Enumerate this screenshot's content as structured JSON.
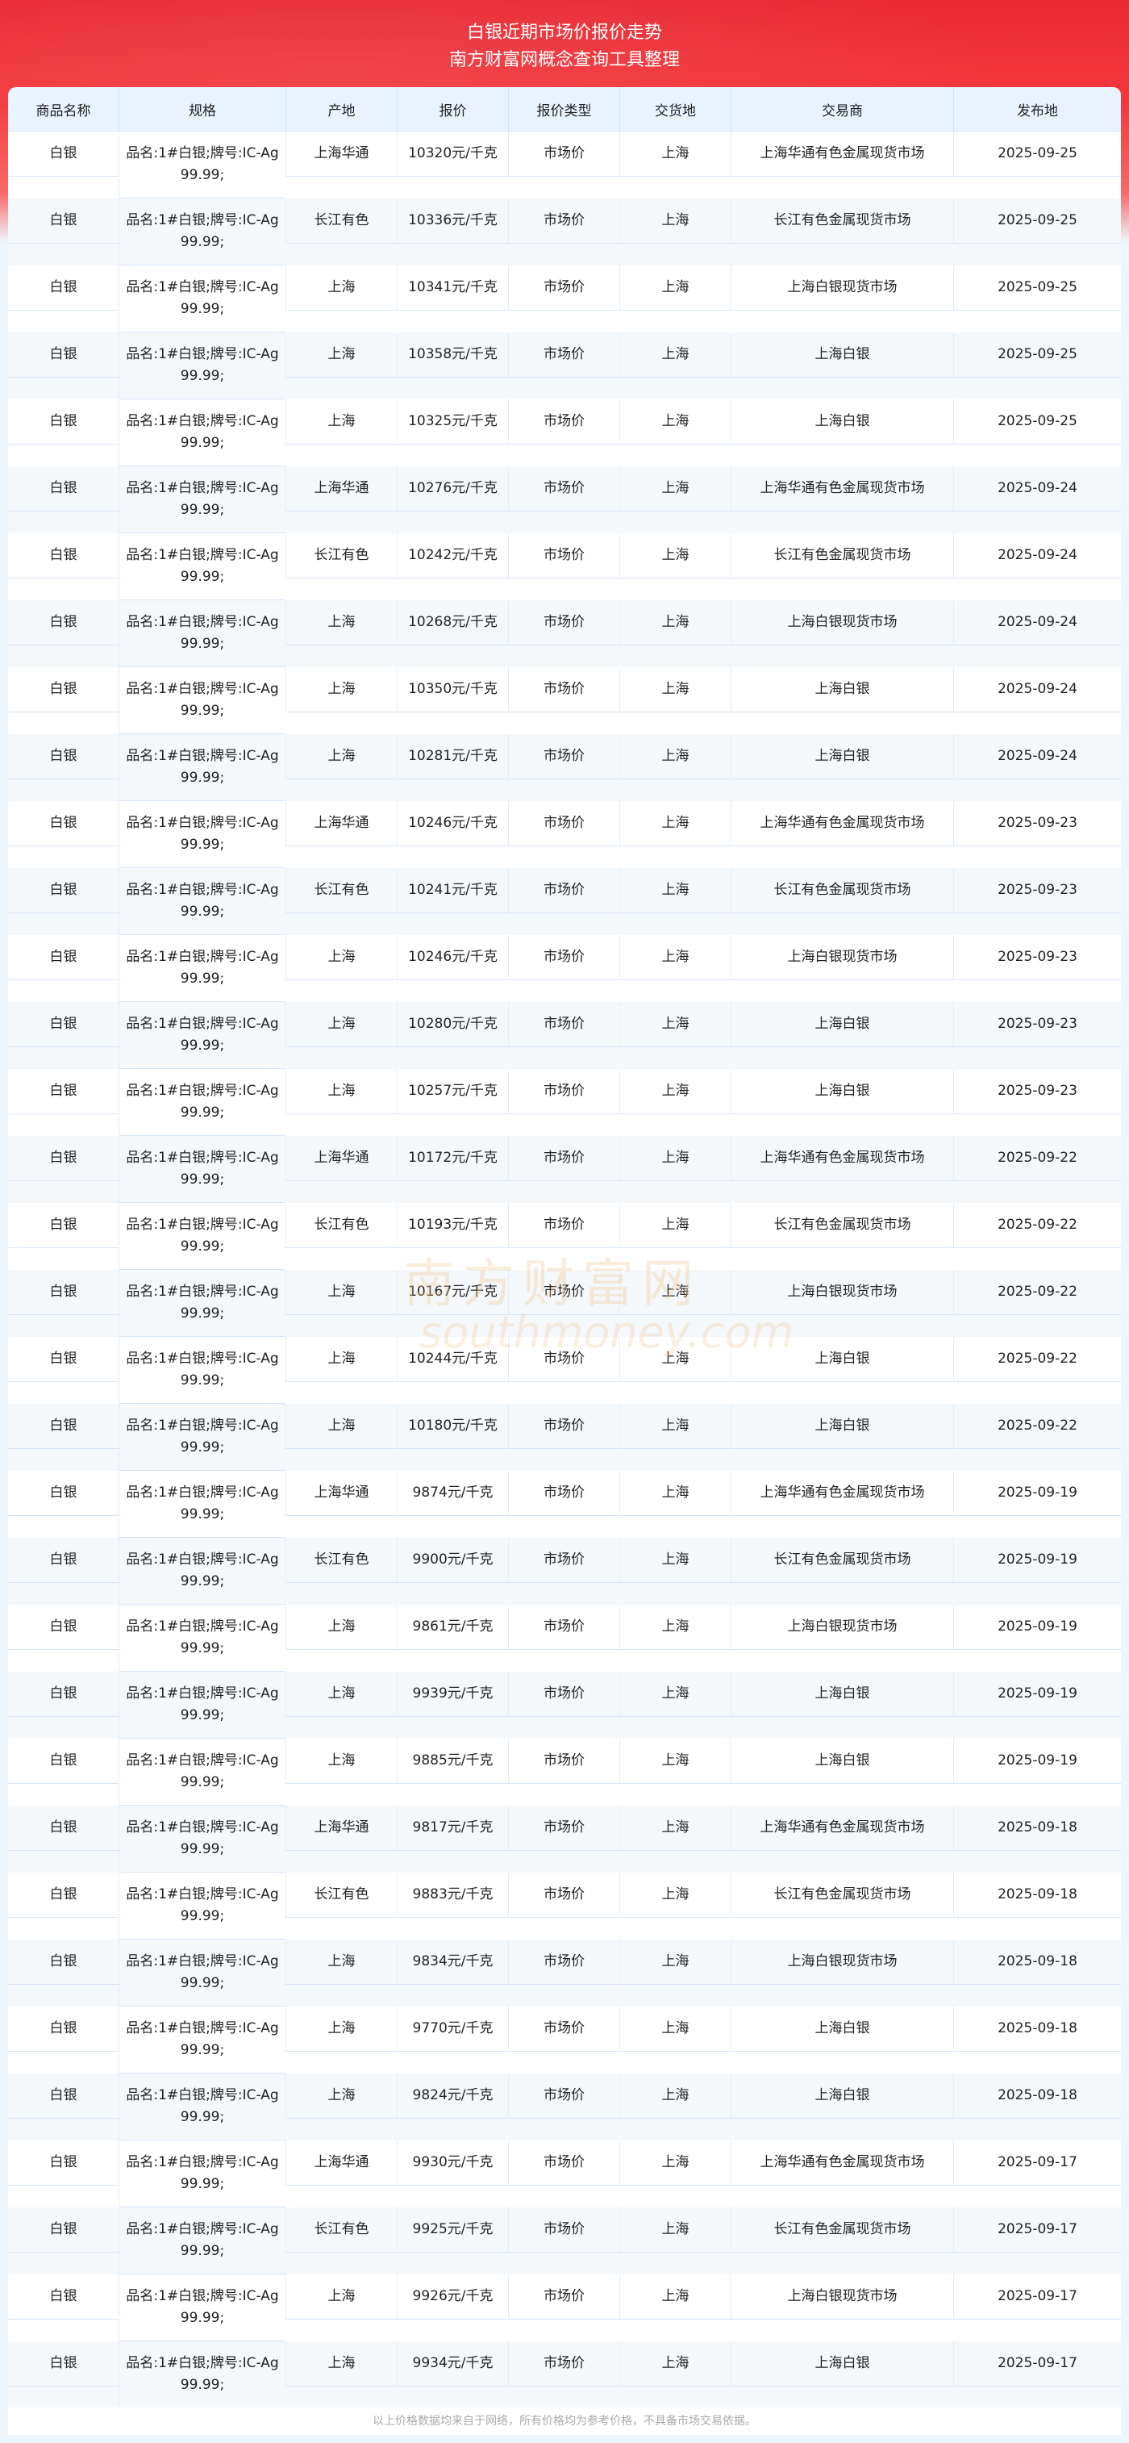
{
  "header": {
    "title": "白银近期市场价报价走势",
    "subtitle": "南方财富网概念查询工具整理"
  },
  "columns": [
    "商品名称",
    "规格",
    "产地",
    "报价",
    "报价类型",
    "交货地",
    "交易商",
    "发布地"
  ],
  "rows": [
    [
      "白银",
      "品名:1#白银;牌号:IC-Ag99.99;",
      "上海华通",
      "10320元/千克",
      "市场价",
      "上海",
      "上海华通有色金属现货市场",
      "2025-09-25"
    ],
    [
      "白银",
      "品名:1#白银;牌号:IC-Ag99.99;",
      "长江有色",
      "10336元/千克",
      "市场价",
      "上海",
      "长江有色金属现货市场",
      "2025-09-25"
    ],
    [
      "白银",
      "品名:1#白银;牌号:IC-Ag99.99;",
      "上海",
      "10341元/千克",
      "市场价",
      "上海",
      "上海白银现货市场",
      "2025-09-25"
    ],
    [
      "白银",
      "品名:1#白银;牌号:IC-Ag99.99;",
      "上海",
      "10358元/千克",
      "市场价",
      "上海",
      "上海白银",
      "2025-09-25"
    ],
    [
      "白银",
      "品名:1#白银;牌号:IC-Ag99.99;",
      "上海",
      "10325元/千克",
      "市场价",
      "上海",
      "上海白银",
      "2025-09-25"
    ],
    [
      "白银",
      "品名:1#白银;牌号:IC-Ag99.99;",
      "上海华通",
      "10276元/千克",
      "市场价",
      "上海",
      "上海华通有色金属现货市场",
      "2025-09-24"
    ],
    [
      "白银",
      "品名:1#白银;牌号:IC-Ag99.99;",
      "长江有色",
      "10242元/千克",
      "市场价",
      "上海",
      "长江有色金属现货市场",
      "2025-09-24"
    ],
    [
      "白银",
      "品名:1#白银;牌号:IC-Ag99.99;",
      "上海",
      "10268元/千克",
      "市场价",
      "上海",
      "上海白银现货市场",
      "2025-09-24"
    ],
    [
      "白银",
      "品名:1#白银;牌号:IC-Ag99.99;",
      "上海",
      "10350元/千克",
      "市场价",
      "上海",
      "上海白银",
      "2025-09-24"
    ],
    [
      "白银",
      "品名:1#白银;牌号:IC-Ag99.99;",
      "上海",
      "10281元/千克",
      "市场价",
      "上海",
      "上海白银",
      "2025-09-24"
    ],
    [
      "白银",
      "品名:1#白银;牌号:IC-Ag99.99;",
      "上海华通",
      "10246元/千克",
      "市场价",
      "上海",
      "上海华通有色金属现货市场",
      "2025-09-23"
    ],
    [
      "白银",
      "品名:1#白银;牌号:IC-Ag99.99;",
      "长江有色",
      "10241元/千克",
      "市场价",
      "上海",
      "长江有色金属现货市场",
      "2025-09-23"
    ],
    [
      "白银",
      "品名:1#白银;牌号:IC-Ag99.99;",
      "上海",
      "10246元/千克",
      "市场价",
      "上海",
      "上海白银现货市场",
      "2025-09-23"
    ],
    [
      "白银",
      "品名:1#白银;牌号:IC-Ag99.99;",
      "上海",
      "10280元/千克",
      "市场价",
      "上海",
      "上海白银",
      "2025-09-23"
    ],
    [
      "白银",
      "品名:1#白银;牌号:IC-Ag99.99;",
      "上海",
      "10257元/千克",
      "市场价",
      "上海",
      "上海白银",
      "2025-09-23"
    ],
    [
      "白银",
      "品名:1#白银;牌号:IC-Ag99.99;",
      "上海华通",
      "10172元/千克",
      "市场价",
      "上海",
      "上海华通有色金属现货市场",
      "2025-09-22"
    ],
    [
      "白银",
      "品名:1#白银;牌号:IC-Ag99.99;",
      "长江有色",
      "10193元/千克",
      "市场价",
      "上海",
      "长江有色金属现货市场",
      "2025-09-22"
    ],
    [
      "白银",
      "品名:1#白银;牌号:IC-Ag99.99;",
      "上海",
      "10167元/千克",
      "市场价",
      "上海",
      "上海白银现货市场",
      "2025-09-22"
    ],
    [
      "白银",
      "品名:1#白银;牌号:IC-Ag99.99;",
      "上海",
      "10244元/千克",
      "市场价",
      "上海",
      "上海白银",
      "2025-09-22"
    ],
    [
      "白银",
      "品名:1#白银;牌号:IC-Ag99.99;",
      "上海",
      "10180元/千克",
      "市场价",
      "上海",
      "上海白银",
      "2025-09-22"
    ],
    [
      "白银",
      "品名:1#白银;牌号:IC-Ag99.99;",
      "上海华通",
      "9874元/千克",
      "市场价",
      "上海",
      "上海华通有色金属现货市场",
      "2025-09-19"
    ],
    [
      "白银",
      "品名:1#白银;牌号:IC-Ag99.99;",
      "长江有色",
      "9900元/千克",
      "市场价",
      "上海",
      "长江有色金属现货市场",
      "2025-09-19"
    ],
    [
      "白银",
      "品名:1#白银;牌号:IC-Ag99.99;",
      "上海",
      "9861元/千克",
      "市场价",
      "上海",
      "上海白银现货市场",
      "2025-09-19"
    ],
    [
      "白银",
      "品名:1#白银;牌号:IC-Ag99.99;",
      "上海",
      "9939元/千克",
      "市场价",
      "上海",
      "上海白银",
      "2025-09-19"
    ],
    [
      "白银",
      "品名:1#白银;牌号:IC-Ag99.99;",
      "上海",
      "9885元/千克",
      "市场价",
      "上海",
      "上海白银",
      "2025-09-19"
    ],
    [
      "白银",
      "品名:1#白银;牌号:IC-Ag99.99;",
      "上海华通",
      "9817元/千克",
      "市场价",
      "上海",
      "上海华通有色金属现货市场",
      "2025-09-18"
    ],
    [
      "白银",
      "品名:1#白银;牌号:IC-Ag99.99;",
      "长江有色",
      "9883元/千克",
      "市场价",
      "上海",
      "长江有色金属现货市场",
      "2025-09-18"
    ],
    [
      "白银",
      "品名:1#白银;牌号:IC-Ag99.99;",
      "上海",
      "9834元/千克",
      "市场价",
      "上海",
      "上海白银现货市场",
      "2025-09-18"
    ],
    [
      "白银",
      "品名:1#白银;牌号:IC-Ag99.99;",
      "上海",
      "9770元/千克",
      "市场价",
      "上海",
      "上海白银",
      "2025-09-18"
    ],
    [
      "白银",
      "品名:1#白银;牌号:IC-Ag99.99;",
      "上海",
      "9824元/千克",
      "市场价",
      "上海",
      "上海白银",
      "2025-09-18"
    ],
    [
      "白银",
      "品名:1#白银;牌号:IC-Ag99.99;",
      "上海华通",
      "9930元/千克",
      "市场价",
      "上海",
      "上海华通有色金属现货市场",
      "2025-09-17"
    ],
    [
      "白银",
      "品名:1#白银;牌号:IC-Ag99.99;",
      "长江有色",
      "9925元/千克",
      "市场价",
      "上海",
      "长江有色金属现货市场",
      "2025-09-17"
    ],
    [
      "白银",
      "品名:1#白银;牌号:IC-Ag99.99;",
      "上海",
      "9926元/千克",
      "市场价",
      "上海",
      "上海白银现货市场",
      "2025-09-17"
    ],
    [
      "白银",
      "品名:1#白银;牌号:IC-Ag99.99;",
      "上海",
      "9934元/千克",
      "市场价",
      "上海",
      "上海白银",
      "2025-09-17"
    ]
  ],
  "footer": {
    "note": "以上价格数据均来自于网络，所有价格均为参考价格，不具备市场交易依据。"
  },
  "watermark": {
    "logo_text": "南方财富网",
    "logo_url_text": "southmoney.com"
  },
  "colors": {
    "header_red": "#e82a33",
    "table_header_bg": "#e8f3fe",
    "border": "#d6e4f7",
    "page_bg": "#eef6fd"
  }
}
